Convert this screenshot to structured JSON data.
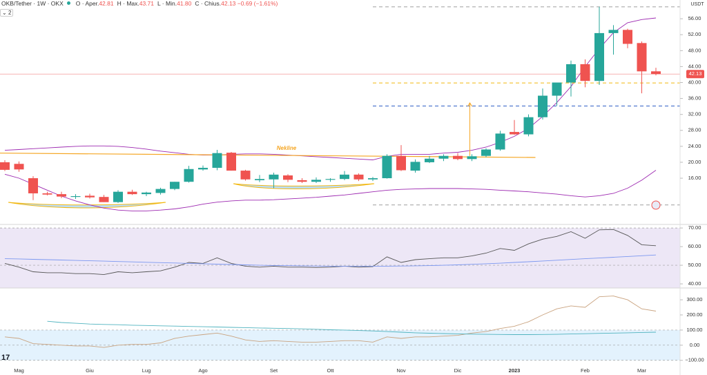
{
  "header": {
    "symbol": "OKB/Tether · 1W · OKX",
    "fields": [
      {
        "key": "O",
        "label": "Aper.",
        "value": "42.81"
      },
      {
        "key": "H",
        "label": "Max.",
        "value": "43.71"
      },
      {
        "key": "L",
        "label": "Min.",
        "value": "41.80"
      },
      {
        "key": "C",
        "label": "Chius.",
        "value": "42.13"
      }
    ],
    "change": "−0.69 (−1.61%)",
    "indicators": "2"
  },
  "chart_data": [
    {
      "type": "candlestick",
      "unit": "USDT",
      "categories": [
        null,
        "Mag",
        null,
        null,
        null,
        null,
        "Giu",
        null,
        null,
        null,
        "Lug",
        null,
        null,
        null,
        "Ago",
        null,
        null,
        null,
        null,
        "Set",
        null,
        null,
        null,
        "Ott",
        null,
        null,
        null,
        null,
        "Nov",
        null,
        null,
        null,
        "Dic",
        null,
        null,
        null,
        "2023",
        null,
        null,
        null,
        null,
        "Feb",
        null,
        null,
        null,
        "Mar",
        null
      ],
      "open": [
        20.0,
        19.6,
        16.0,
        12.2,
        12.0,
        11.3,
        11.6,
        11.3,
        10.0,
        12.6,
        12.0,
        12.3,
        13.3,
        15.1,
        18.2,
        18.6,
        22.4,
        17.9,
        15.5,
        15.7,
        16.7,
        15.5,
        15.1,
        15.6,
        15.8,
        16.9,
        15.7,
        16.0,
        21.6,
        17.9,
        20.0,
        20.9,
        21.6,
        20.8,
        21.6,
        23.2,
        27.6,
        27.0,
        31.3,
        36.7,
        40.0,
        44.6,
        40.4,
        52.4,
        53.2,
        49.9,
        42.81
      ],
      "high": [
        20.5,
        20.2,
        16.5,
        12.6,
        12.6,
        12.0,
        12.1,
        11.8,
        13.0,
        13.1,
        12.6,
        13.6,
        15.1,
        19.1,
        19.2,
        23.1,
        22.6,
        18.1,
        16.8,
        17.4,
        17.0,
        16.0,
        16.2,
        16.0,
        17.8,
        17.2,
        16.3,
        22.0,
        24.3,
        20.7,
        21.6,
        22.0,
        22.3,
        22.0,
        23.5,
        27.9,
        30.6,
        32.0,
        38.5,
        40.0,
        45.5,
        45.8,
        59.0,
        54.4,
        53.5,
        50.3,
        43.71
      ],
      "low": [
        17.8,
        17.6,
        10.5,
        11.7,
        11.0,
        10.8,
        10.9,
        10.0,
        9.8,
        11.8,
        11.5,
        11.9,
        13.0,
        14.9,
        17.9,
        18.0,
        17.9,
        15.4,
        15.0,
        13.5,
        15.0,
        14.8,
        14.8,
        15.1,
        15.5,
        15.3,
        15.3,
        15.9,
        17.8,
        17.4,
        19.8,
        20.3,
        20.5,
        20.3,
        21.3,
        22.9,
        26.9,
        26.5,
        30.7,
        34.2,
        36.5,
        38.8,
        39.4,
        47.0,
        48.6,
        37.3,
        41.8
      ],
      "close": [
        18.1,
        18.2,
        12.2,
        11.9,
        11.4,
        11.5,
        11.2,
        10.0,
        12.6,
        12.0,
        12.4,
        13.3,
        15.1,
        18.3,
        18.6,
        22.3,
        17.9,
        15.7,
        15.8,
        16.9,
        15.6,
        15.1,
        15.6,
        15.8,
        16.9,
        15.7,
        16.0,
        21.6,
        18.0,
        20.1,
        20.9,
        21.6,
        20.8,
        21.5,
        23.2,
        27.2,
        27.0,
        31.3,
        36.7,
        40.0,
        44.6,
        40.4,
        52.4,
        53.2,
        49.7,
        42.8,
        42.13
      ],
      "up_color": "#26a69a",
      "down_color": "#ef5350",
      "ylim": [
        4.4,
        60.7
      ],
      "yticks": [
        {
          "value": 16,
          "label": "16.00"
        },
        {
          "value": 20,
          "label": "20.00"
        },
        {
          "value": 24,
          "label": "24.00"
        },
        {
          "value": 28,
          "label": "28.00"
        },
        {
          "value": 32,
          "label": "32.00"
        },
        {
          "value": 36,
          "label": "36.00"
        },
        {
          "value": 40,
          "label": "40.00"
        },
        {
          "value": 44,
          "label": "44.00"
        },
        {
          "value": 48,
          "label": "48.00"
        },
        {
          "value": 52,
          "label": "52.00"
        },
        {
          "value": 56,
          "label": "56.00"
        }
      ],
      "bands": [
        {
          "color": "#9c27b0",
          "values": [
            23,
            23.2,
            23.4,
            23.6,
            23.8,
            24,
            24.1,
            24.1,
            24,
            23.7,
            23.3,
            22.8,
            22.4,
            22,
            21.8,
            21.8,
            22,
            22.1,
            22.1,
            22,
            21.8,
            21.6,
            21.4,
            21.2,
            21,
            20.8,
            20.6,
            21.5,
            22,
            22,
            22,
            22.3,
            22.5,
            23,
            23.8,
            25,
            26.5,
            28.5,
            31.5,
            35,
            39,
            44,
            48.5,
            52.5,
            55,
            55.8,
            56.2
          ]
        },
        {
          "color": "#9c27b0",
          "values": [
            17,
            16,
            14.5,
            13,
            11.5,
            10.3,
            9.3,
            8.5,
            8,
            7.8,
            7.8,
            8,
            8.3,
            8.8,
            9.5,
            10,
            10.3,
            10.5,
            10.5,
            10.6,
            10.8,
            11,
            11.2,
            11.5,
            11.8,
            12.2,
            12.6,
            13,
            13.2,
            13.3,
            13.4,
            13.4,
            13.4,
            13.3,
            13.2,
            13,
            12.8,
            12.6,
            12.3,
            12,
            11.6,
            11.3,
            11.6,
            12.2,
            13.5,
            15.5,
            18
          ]
        }
      ],
      "levels": [
        {
          "value": 59.0,
          "color": "#9e9e9e"
        },
        {
          "value": 9.3,
          "color": "#9e9e9e"
        },
        {
          "value": 39.9,
          "color": "#f2b70e"
        },
        {
          "value": 34.1,
          "color": "#2f5fc4"
        }
      ],
      "last_price": 42.13,
      "last_price_color": "#ef5350",
      "neckline": {
        "label": "Nekline",
        "start": 22.3,
        "end": 21.2,
        "color": "#f5a623"
      },
      "target_arrow": {
        "from": 21.6,
        "to": 34.9,
        "color": "#f5a623"
      }
    },
    {
      "type": "line",
      "series": [
        {
          "color": "#555555",
          "values": [
            51,
            49,
            46.5,
            46,
            46,
            45.5,
            45.5,
            45,
            46.5,
            46,
            46.5,
            47,
            49,
            51.5,
            51,
            54,
            51,
            49.5,
            49,
            49.5,
            49,
            49,
            48.8,
            49,
            49.5,
            49,
            49.3,
            54.5,
            51.5,
            53,
            53.5,
            54,
            54,
            55,
            56.5,
            59,
            58,
            61.5,
            64,
            65.5,
            68,
            64.5,
            69,
            69.2,
            66,
            61,
            60.5
          ]
        },
        {
          "color": "#7b97f0",
          "values": [
            53.5,
            53.4,
            53.2,
            53.0,
            52.8,
            52.6,
            52.4,
            52.2,
            52.0,
            51.8,
            51.6,
            51.4,
            51.2,
            51.0,
            50.8,
            50.6,
            50.4,
            50.2,
            50.0,
            49.9,
            49.8,
            49.7,
            49.6,
            49.5,
            49.5,
            49.5,
            49.5,
            49.5,
            49.6,
            49.7,
            49.8,
            50.0,
            50.2,
            50.5,
            50.8,
            51.1,
            51.5,
            51.9,
            52.3,
            52.7,
            53.1,
            53.5,
            53.9,
            54.3,
            54.7,
            55.1,
            55.5
          ]
        }
      ],
      "ylim": [
        37.8,
        71.9
      ],
      "yticks": [
        {
          "value": 40,
          "label": "40.00"
        },
        {
          "value": 50,
          "label": "50.00"
        },
        {
          "value": 60,
          "label": "60.00"
        },
        {
          "value": 70,
          "label": "70.00"
        }
      ],
      "band": [
        30,
        70
      ],
      "band_color": "#ede7f6",
      "levels": [
        70,
        50
      ]
    },
    {
      "type": "line",
      "series": [
        {
          "color": "#c9a27e",
          "values": [
            55,
            45,
            10,
            5,
            0,
            -5,
            -5,
            -15,
            0,
            5,
            5,
            15,
            45,
            60,
            70,
            80,
            60,
            35,
            25,
            30,
            25,
            20,
            20,
            25,
            30,
            30,
            20,
            55,
            45,
            55,
            55,
            60,
            65,
            80,
            90,
            110,
            125,
            155,
            200,
            240,
            260,
            250,
            320,
            325,
            300,
            240,
            225
          ]
        },
        {
          "color": "#4fb3bf",
          "values": [
            null,
            null,
            null,
            158,
            150,
            145,
            140,
            137,
            135,
            132,
            130,
            128,
            126,
            124,
            122,
            120,
            118,
            116,
            114,
            112,
            110,
            108,
            105,
            102,
            100,
            97,
            94,
            90,
            86,
            82,
            79,
            77,
            75,
            73,
            72,
            71,
            70,
            70,
            71,
            72,
            74,
            76,
            78,
            80,
            82,
            84,
            86
          ]
        }
      ],
      "ylim": [
        -197,
        378
      ],
      "yticks": [
        {
          "value": -100,
          "label": "−100.00"
        },
        {
          "value": 0,
          "label": "0.00"
        },
        {
          "value": 100,
          "label": "100.00"
        },
        {
          "value": 200,
          "label": "200.00"
        },
        {
          "value": 300,
          "label": "300.00"
        }
      ],
      "band": [
        -100,
        100
      ],
      "band_color": "#e3f2fd",
      "levels": [
        100,
        0,
        -100
      ]
    }
  ]
}
